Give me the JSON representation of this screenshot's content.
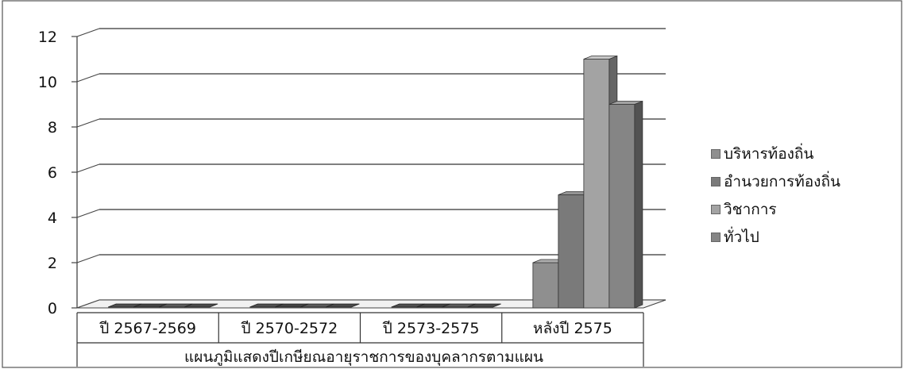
{
  "chart_data": {
    "type": "bar",
    "style": "3d",
    "title": "",
    "xlabel": "แผนภูมิแสดงปีเกษียณอายุราชการของบุคลากรตามแผน",
    "ylabel": "",
    "ylim": [
      0,
      12
    ],
    "yticks": [
      "0",
      "2",
      "4",
      "6",
      "8",
      "10",
      "12"
    ],
    "grid": true,
    "legend_position": "right",
    "categories": [
      "ปี 2567-2569",
      "ปี 2570-2572",
      "ปี 2573-2575",
      "หลังปี 2575"
    ],
    "series": [
      {
        "name": "บริหารท้องถิ่น",
        "values": [
          0,
          0,
          0,
          2
        ],
        "color": "#8f8f8f"
      },
      {
        "name": "อำนวยการท้องถิ่น",
        "values": [
          0,
          0,
          0,
          5
        ],
        "color": "#7a7a7a"
      },
      {
        "name": "วิชาการ",
        "values": [
          0,
          0,
          0,
          11
        ],
        "color": "#a3a3a3"
      },
      {
        "name": "ทั่วไป",
        "values": [
          0,
          0,
          0,
          9
        ],
        "color": "#858585"
      }
    ]
  }
}
